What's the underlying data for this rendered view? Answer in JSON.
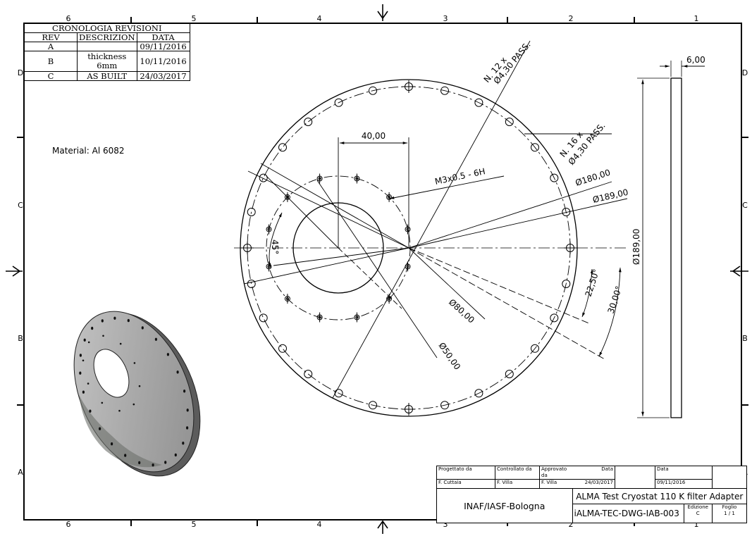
{
  "border": {
    "columns_top": [
      "6",
      "5",
      "4",
      "3",
      "2",
      "1"
    ],
    "columns_bottom": [
      "6",
      "5",
      "4",
      "3",
      "2",
      "1"
    ],
    "rows_left": [
      "D",
      "C",
      "B",
      "A"
    ],
    "rows_right": [
      "D",
      "C",
      "B",
      "A"
    ]
  },
  "revisions": {
    "caption": "CRONOLOGIA REVISIONI",
    "headers": [
      "REV",
      "DESCRIZION",
      "DATA"
    ],
    "rows": [
      {
        "rev": "A",
        "desc": "",
        "date": "09/11/2016"
      },
      {
        "rev": "B",
        "desc": "thickness 6mm",
        "date": "10/11/2016"
      },
      {
        "rev": "C",
        "desc": "AS BUILT",
        "date": "24/03/2017"
      }
    ]
  },
  "material": "Material: Al 6082",
  "annotations": {
    "holes_12": "N. 12 x",
    "holes_12_dia": "Ø4,30 PASS.",
    "holes_16": "N. 16 x",
    "holes_16_dia": "Ø4,30 PASS.",
    "dim_40": "40,00",
    "thread": "M3x0.5 - 6H",
    "dia_180": "Ø180,00",
    "dia_189": "Ø189,00",
    "dia_80": "Ø80,00",
    "dia_50": "Ø50,00",
    "angle_45": "45°",
    "angle_22_5": "22,50°",
    "angle_30": "30,00°",
    "side_thickness": "6,00",
    "side_height": "Ø189,00"
  },
  "title_block": {
    "designed_by_label": "Progettato da",
    "designed_by": "F. Cuttaia",
    "checked_by_label": "Controllato da",
    "checked_by": "F. Villa",
    "approved_by_label": "Approvato da",
    "approved_by": "F. Villa",
    "date_label_1": "Data",
    "date_1": "24/03/2017",
    "date_label_2": "Data",
    "date_2": "09/11/2016",
    "organization": "INAF/IASF-Bologna",
    "title": "ALMA Test Cryostat 110 K filter Adapter",
    "drawing_code": "iALMA-TEC-DWG-IAB-003",
    "edition_label": "Edizione",
    "edition": "C",
    "sheet_label": "Foglio",
    "sheet": "1 / 1"
  }
}
